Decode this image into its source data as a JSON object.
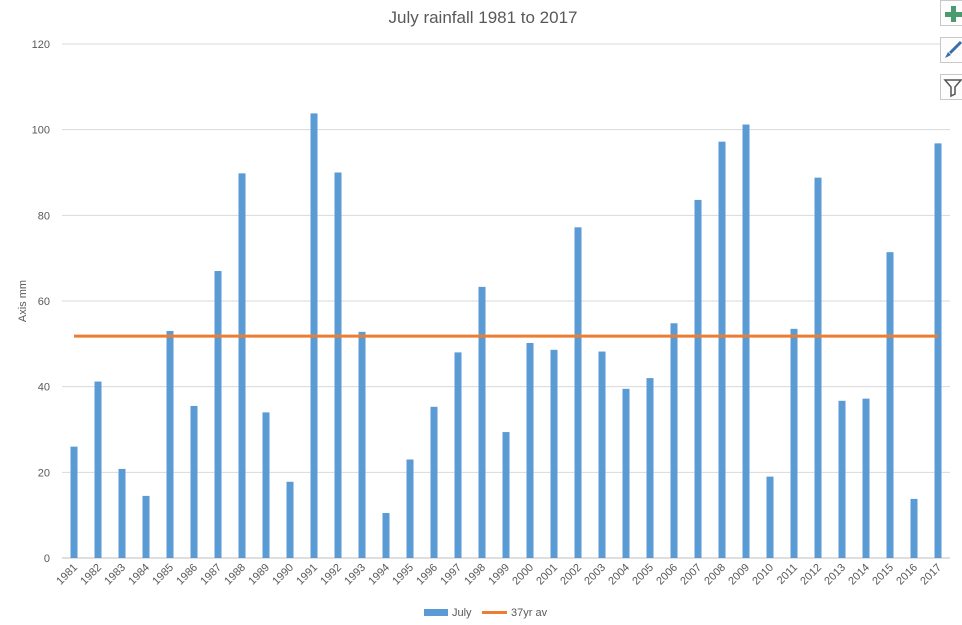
{
  "chart_data": {
    "type": "bar",
    "title": "July rainfall 1981 to 2017",
    "ylabel": "Axis mm",
    "xlabel": "",
    "ylim": [
      0,
      120
    ],
    "yticks": [
      0,
      20,
      40,
      60,
      80,
      100,
      120
    ],
    "grid": true,
    "legend_position": "bottom",
    "categories": [
      "1981",
      "1982",
      "1983",
      "1984",
      "1985",
      "1986",
      "1987",
      "1988",
      "1989",
      "1990",
      "1991",
      "1992",
      "1993",
      "1994",
      "1995",
      "1996",
      "1997",
      "1998",
      "1999",
      "2000",
      "2001",
      "2002",
      "2003",
      "2004",
      "2005",
      "2006",
      "2007",
      "2008",
      "2009",
      "2010",
      "2011",
      "2012",
      "2013",
      "2014",
      "2015",
      "2016",
      "2017"
    ],
    "series": [
      {
        "name": "July",
        "kind": "bar",
        "color": "#5b9bd5",
        "values": [
          26,
          41.2,
          20.8,
          14.5,
          53,
          35.5,
          67,
          89.8,
          34,
          17.8,
          103.8,
          90,
          52.8,
          10.5,
          23,
          35.3,
          48,
          63.3,
          29.4,
          50.2,
          48.6,
          77.2,
          48.2,
          39.5,
          42,
          54.8,
          83.6,
          97.2,
          101.2,
          19,
          53.5,
          88.8,
          36.7,
          37.2,
          71.4,
          13.8,
          96.8
        ]
      },
      {
        "name": "37yr av",
        "kind": "line",
        "color": "#ed7d31",
        "values": [
          51.8,
          51.8,
          51.8,
          51.8,
          51.8,
          51.8,
          51.8,
          51.8,
          51.8,
          51.8,
          51.8,
          51.8,
          51.8,
          51.8,
          51.8,
          51.8,
          51.8,
          51.8,
          51.8,
          51.8,
          51.8,
          51.8,
          51.8,
          51.8,
          51.8,
          51.8,
          51.8,
          51.8,
          51.8,
          51.8,
          51.8,
          51.8,
          51.8,
          51.8,
          51.8,
          51.8,
          51.8
        ]
      }
    ]
  },
  "toolbar": {
    "icons": [
      "plus-icon",
      "brush-icon",
      "filter-icon"
    ]
  }
}
